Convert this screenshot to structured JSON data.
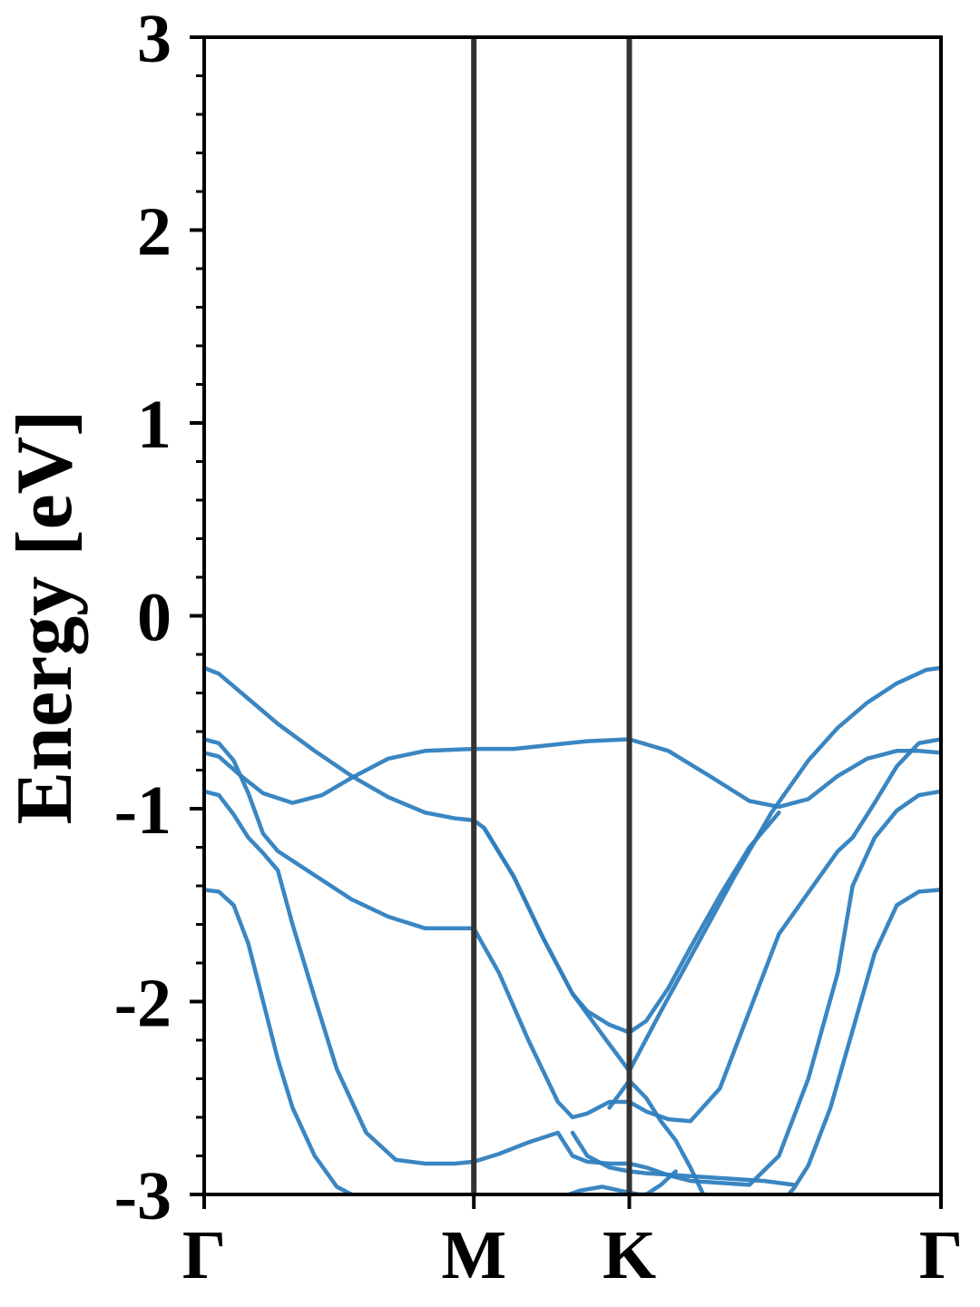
{
  "chart_data": {
    "type": "line",
    "title": "",
    "xlabel": "",
    "ylabel": "Energy [eV]",
    "ylim": [
      -3,
      3
    ],
    "yticks": [
      3,
      2,
      1,
      0,
      -1,
      -2,
      -3
    ],
    "ytick_labels": [
      "3",
      "2",
      "1",
      "0",
      "-1",
      "-2",
      "-3"
    ],
    "minor_ytick_step": 0.2,
    "xlim": [
      0,
      1
    ],
    "kpoints": [
      {
        "label": "Γ",
        "x": 0.0
      },
      {
        "label": "M",
        "x": 0.366
      },
      {
        "label": "K",
        "x": 0.577
      },
      {
        "label": "Γ",
        "x": 1.0
      }
    ],
    "kpath_line_color": "#333333",
    "band_color": "#2f7fbf",
    "grid": false,
    "legend": "none",
    "series": [
      {
        "x": [
          0,
          0.02,
          0.06,
          0.1,
          0.15,
          0.2,
          0.25,
          0.3,
          0.34,
          0.366,
          0.38,
          0.42,
          0.46,
          0.5,
          0.54,
          0.577,
          0.62,
          0.67,
          0.72,
          0.77,
          0.82,
          0.86,
          0.9,
          0.94,
          0.98,
          1.0
        ],
        "y": [
          -0.27,
          -0.3,
          -0.43,
          -0.56,
          -0.7,
          -0.83,
          -0.94,
          -1.02,
          -1.05,
          -1.06,
          -1.1,
          -1.35,
          -1.67,
          -1.96,
          -2.17,
          -2.36,
          -2.05,
          -1.7,
          -1.35,
          -1.02,
          -0.75,
          -0.58,
          -0.45,
          -0.35,
          -0.28,
          -0.27
        ]
      },
      {
        "x": [
          0,
          0.02,
          0.05,
          0.08,
          0.12,
          0.16,
          0.2,
          0.25,
          0.3,
          0.366,
          0.42,
          0.47,
          0.52,
          0.577,
          0.63,
          0.69,
          0.74,
          0.78,
          0.82,
          0.86,
          0.9,
          0.94,
          0.97,
          1.0
        ],
        "y": [
          -0.71,
          -0.73,
          -0.83,
          -0.92,
          -0.97,
          -0.93,
          -0.84,
          -0.74,
          -0.7,
          -0.69,
          -0.69,
          -0.67,
          -0.65,
          -0.64,
          -0.7,
          -0.84,
          -0.96,
          -0.99,
          -0.95,
          -0.83,
          -0.74,
          -0.7,
          -0.7,
          -0.71
        ]
      },
      {
        "x": [
          0,
          0.02,
          0.04,
          0.06,
          0.08,
          0.1,
          0.12,
          0.16,
          0.2,
          0.25,
          0.3,
          0.366,
          0.4,
          0.44,
          0.48,
          0.5,
          0.52,
          0.55,
          0.577,
          0.6,
          0.63,
          0.66,
          0.7,
          0.74,
          0.78,
          0.86,
          0.88,
          0.91,
          0.94,
          0.97,
          1.0
        ],
        "y": [
          -0.64,
          -0.66,
          -0.75,
          -0.92,
          -1.13,
          -1.22,
          -1.27,
          -1.37,
          -1.47,
          -1.56,
          -1.62,
          -1.62,
          -1.85,
          -2.2,
          -2.52,
          -2.6,
          -2.58,
          -2.52,
          -2.52,
          -2.57,
          -2.61,
          -2.62,
          -2.45,
          -2.05,
          -1.65,
          -1.22,
          -1.15,
          -0.97,
          -0.78,
          -0.66,
          -0.64
        ]
      },
      {
        "x": [
          0,
          0.02,
          0.04,
          0.06,
          0.08,
          0.1,
          0.12,
          0.15,
          0.18,
          0.22,
          0.26,
          0.3,
          0.34,
          0.366,
          0.4,
          0.44,
          0.48,
          0.5,
          0.52,
          0.55,
          0.577,
          0.6,
          0.63,
          0.66,
          0.7,
          0.74,
          0.78,
          0.82,
          0.86,
          0.88,
          0.91,
          0.94,
          0.97,
          1.0
        ],
        "y": [
          -0.91,
          -0.93,
          -1.03,
          -1.15,
          -1.23,
          -1.32,
          -1.6,
          -1.98,
          -2.35,
          -2.68,
          -2.82,
          -2.84,
          -2.84,
          -2.83,
          -2.79,
          -2.73,
          -2.68,
          -2.8,
          -2.83,
          -2.84,
          -2.84,
          -2.86,
          -2.9,
          -2.93,
          -2.94,
          -2.95,
          -2.8,
          -2.4,
          -1.85,
          -1.4,
          -1.15,
          -1.01,
          -0.93,
          -0.91
        ]
      },
      {
        "x": [
          0,
          0.02,
          0.04,
          0.06,
          0.08,
          0.1,
          0.12,
          0.15,
          0.18,
          0.2,
          0.21,
          0.212
        ],
        "y": [
          -1.42,
          -1.43,
          -1.5,
          -1.7,
          -2.0,
          -2.3,
          -2.55,
          -2.8,
          -2.96,
          -3.0,
          -3.01,
          -3.02
        ]
      },
      {
        "x": [
          0.788,
          0.8,
          0.82,
          0.85,
          0.88,
          0.91,
          0.94,
          0.97,
          1.0
        ],
        "y": [
          -3.02,
          -2.97,
          -2.85,
          -2.55,
          -2.15,
          -1.75,
          -1.5,
          -1.43,
          -1.42
        ]
      },
      {
        "x": [
          0.38,
          0.42,
          0.46,
          0.5,
          0.52,
          0.55,
          0.577,
          0.6,
          0.63,
          0.66,
          0.7,
          0.74,
          0.78
        ],
        "y": [
          -1.1,
          -1.35,
          -1.67,
          -1.96,
          -2.05,
          -2.12,
          -2.16,
          -2.1,
          -1.93,
          -1.72,
          -1.45,
          -1.2,
          -1.02
        ]
      },
      {
        "x": [
          0.5,
          0.52,
          0.55,
          0.577,
          0.6,
          0.64,
          0.68,
          0.72,
          0.76,
          0.8
        ],
        "y": [
          -2.68,
          -2.8,
          -2.86,
          -2.88,
          -2.89,
          -2.9,
          -2.91,
          -2.92,
          -2.93,
          -2.95
        ]
      },
      {
        "x": [
          0.48,
          0.51,
          0.54,
          0.577,
          0.59,
          0.6,
          0.62,
          0.64
        ],
        "y": [
          -3.02,
          -2.98,
          -2.96,
          -2.99,
          -3.0,
          -3.0,
          -2.95,
          -2.88
        ]
      },
      {
        "x": [
          0.55,
          0.577,
          0.6,
          0.62,
          0.64,
          0.66,
          0.68
        ],
        "y": [
          -2.55,
          -2.41,
          -2.5,
          -2.62,
          -2.72,
          -2.86,
          -3.02
        ]
      }
    ]
  }
}
